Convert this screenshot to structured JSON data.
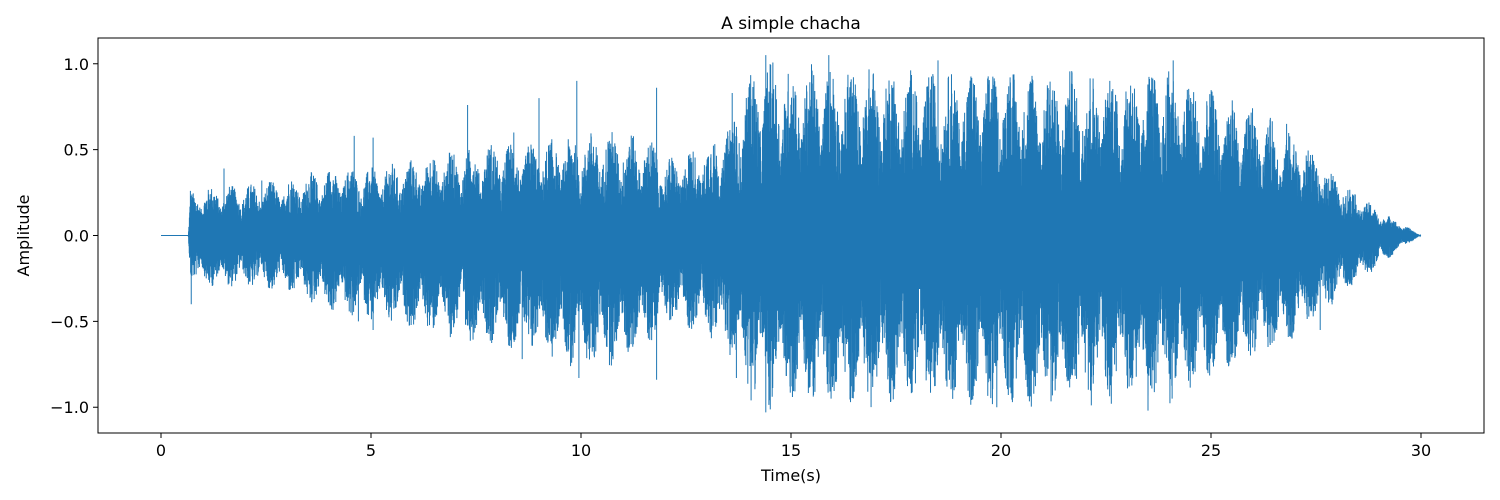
{
  "chart_data": {
    "type": "line",
    "title": "A simple chacha",
    "xlabel": "Time(s)",
    "ylabel": "Amplitude",
    "xlim": [
      -1.5,
      31.5
    ],
    "ylim": [
      -1.15,
      1.15
    ],
    "xticks": [
      0,
      5,
      10,
      15,
      20,
      25,
      30
    ],
    "xtick_labels": [
      "0",
      "5",
      "10",
      "15",
      "20",
      "25",
      "30"
    ],
    "yticks": [
      -1.0,
      -0.5,
      0.0,
      0.5,
      1.0
    ],
    "ytick_labels": [
      "−1.0",
      "−0.5",
      "0.0",
      "0.5",
      "1.0"
    ],
    "grid": false,
    "line_color": "#1f77b4",
    "series": [
      {
        "signal_start": 0,
        "signal_end": 30,
        "silence_until": 0.65,
        "envelope": {
          "t": [
            0.0,
            0.65,
            0.7,
            1.0,
            2.0,
            3.0,
            4.0,
            5.0,
            6.0,
            7.0,
            8.0,
            9.0,
            10.0,
            11.0,
            11.8,
            12.0,
            13.0,
            13.5,
            14.0,
            14.4,
            15.0,
            16.0,
            17.0,
            18.0,
            19.0,
            20.0,
            21.0,
            22.0,
            23.0,
            24.0,
            25.0,
            26.0,
            27.0,
            28.0,
            29.0,
            29.5,
            30.0
          ],
          "upper": [
            0.0,
            0.0,
            0.25,
            0.28,
            0.3,
            0.33,
            0.4,
            0.4,
            0.45,
            0.5,
            0.55,
            0.55,
            0.6,
            0.62,
            0.55,
            0.45,
            0.55,
            0.65,
            0.95,
            1.04,
            1.0,
            1.0,
            1.0,
            0.97,
            0.97,
            1.0,
            0.97,
            0.97,
            0.97,
            1.0,
            0.85,
            0.75,
            0.6,
            0.35,
            0.15,
            0.08,
            0.0
          ],
          "lower": [
            0.0,
            0.0,
            -0.25,
            -0.3,
            -0.3,
            -0.33,
            -0.45,
            -0.5,
            -0.55,
            -0.6,
            -0.65,
            -0.7,
            -0.8,
            -0.75,
            -0.6,
            -0.5,
            -0.6,
            -0.7,
            -0.95,
            -1.03,
            -1.0,
            -1.0,
            -1.0,
            -0.97,
            -1.0,
            -1.0,
            -1.0,
            -1.0,
            -0.98,
            -1.0,
            -0.85,
            -0.75,
            -0.6,
            -0.38,
            -0.18,
            -0.08,
            0.0
          ]
        },
        "peaks": [
          {
            "t": 0.7,
            "v": 0.26
          },
          {
            "t": 0.72,
            "v": -0.4
          },
          {
            "t": 1.5,
            "v": 0.39
          },
          {
            "t": 2.4,
            "v": 0.32
          },
          {
            "t": 4.6,
            "v": 0.58
          },
          {
            "t": 4.7,
            "v": -0.5
          },
          {
            "t": 5.05,
            "v": 0.57
          },
          {
            "t": 5.05,
            "v": -0.55
          },
          {
            "t": 7.3,
            "v": 0.76
          },
          {
            "t": 7.25,
            "v": -0.52
          },
          {
            "t": 8.4,
            "v": 0.6
          },
          {
            "t": 8.6,
            "v": -0.72
          },
          {
            "t": 9.0,
            "v": 0.8
          },
          {
            "t": 9.9,
            "v": 0.9
          },
          {
            "t": 9.95,
            "v": -0.83
          },
          {
            "t": 11.8,
            "v": 0.86
          },
          {
            "t": 11.8,
            "v": -0.84
          },
          {
            "t": 13.6,
            "v": 0.83
          },
          {
            "t": 13.7,
            "v": -0.83
          },
          {
            "t": 14.4,
            "v": 1.05
          },
          {
            "t": 14.4,
            "v": -1.03
          },
          {
            "t": 15.9,
            "v": 1.05
          },
          {
            "t": 18.5,
            "v": 1.02
          },
          {
            "t": 19.9,
            "v": -1.0
          },
          {
            "t": 23.5,
            "v": -1.02
          },
          {
            "t": 24.1,
            "v": 1.02
          },
          {
            "t": 26.8,
            "v": 0.65
          },
          {
            "t": 27.6,
            "v": -0.55
          }
        ]
      }
    ]
  }
}
